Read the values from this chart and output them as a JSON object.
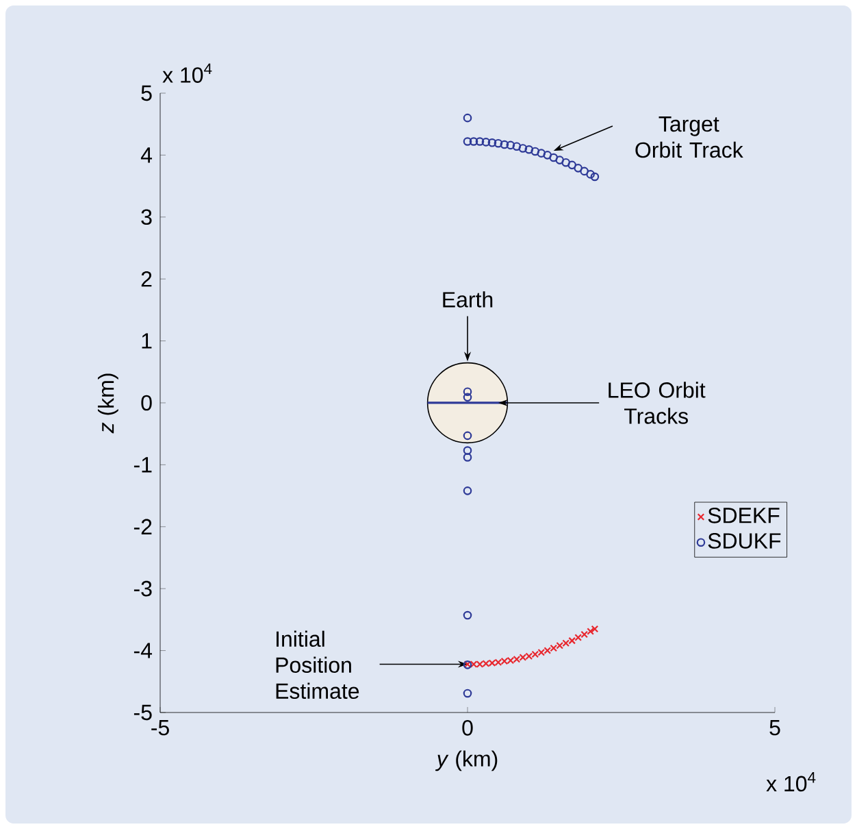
{
  "chart_data": {
    "type": "scatter",
    "xlabel": "*y* (km)",
    "ylabel": "*z* (km)",
    "xlim": [
      -5,
      5
    ],
    "ylim": [
      -5,
      5
    ],
    "xticks": [
      -5,
      0,
      5
    ],
    "yticks": [
      -5,
      -4,
      -3,
      -2,
      -1,
      0,
      1,
      2,
      3,
      4,
      5
    ],
    "legend": "right",
    "series": [
      {
        "name": "SDEKF",
        "marker": "cross",
        "color": "#e8262d",
        "x": [
          0,
          0.1,
          0.2,
          0.3,
          0.4,
          0.5,
          0.6,
          0.7,
          0.8,
          0.9,
          1.0,
          1.1,
          1.2,
          1.3,
          1.4,
          1.5,
          1.6,
          1.7,
          1.8,
          1.9,
          2.0,
          2.07
        ],
        "values": [
          -4.22,
          -4.22,
          -4.22,
          -4.21,
          -4.2,
          -4.19,
          -4.17,
          -4.16,
          -4.14,
          -4.11,
          -4.09,
          -4.06,
          -4.03,
          -4.0,
          -3.96,
          -3.92,
          -3.88,
          -3.84,
          -3.79,
          -3.74,
          -3.69,
          -3.65
        ]
      },
      {
        "name": "SDUKF",
        "marker": "circle",
        "color": "#2e3a97",
        "x": [
          0,
          0,
          0,
          0,
          0,
          0,
          0,
          0,
          0,
          0,
          0,
          0.1,
          0.2,
          0.3,
          0.4,
          0.5,
          0.6,
          0.7,
          0.8,
          0.9,
          1.0,
          1.1,
          1.2,
          1.3,
          1.4,
          1.5,
          1.6,
          1.7,
          1.8,
          1.9,
          2.0,
          2.07
        ],
        "values": [
          4.6,
          0.18,
          0.09,
          -0.53,
          -0.77,
          -0.88,
          -1.42,
          -3.43,
          -4.23,
          -4.69,
          4.22,
          4.22,
          4.22,
          4.21,
          4.2,
          4.19,
          4.17,
          4.16,
          4.14,
          4.11,
          4.09,
          4.06,
          4.03,
          4.0,
          3.96,
          3.92,
          3.88,
          3.84,
          3.79,
          3.74,
          3.69,
          3.65
        ]
      },
      {
        "type": "line",
        "color": "#2e3a97",
        "x": [
          -0.65,
          0.65
        ],
        "values": [
          0,
          0
        ]
      }
    ],
    "annotations": [
      {
        "text": "Target Orbit Track",
        "x": 1.4,
        "y": 4.07
      },
      "Earth",
      {
        "text": "LEO Orbit Tracks",
        "x": 0.5,
        "y": 0
      },
      {
        "text": "Initial Position Estimate",
        "x": 0,
        "y": -4.22
      },
      "x 10$^{4}$",
      "x 10$^{4}$"
    ]
  }
}
